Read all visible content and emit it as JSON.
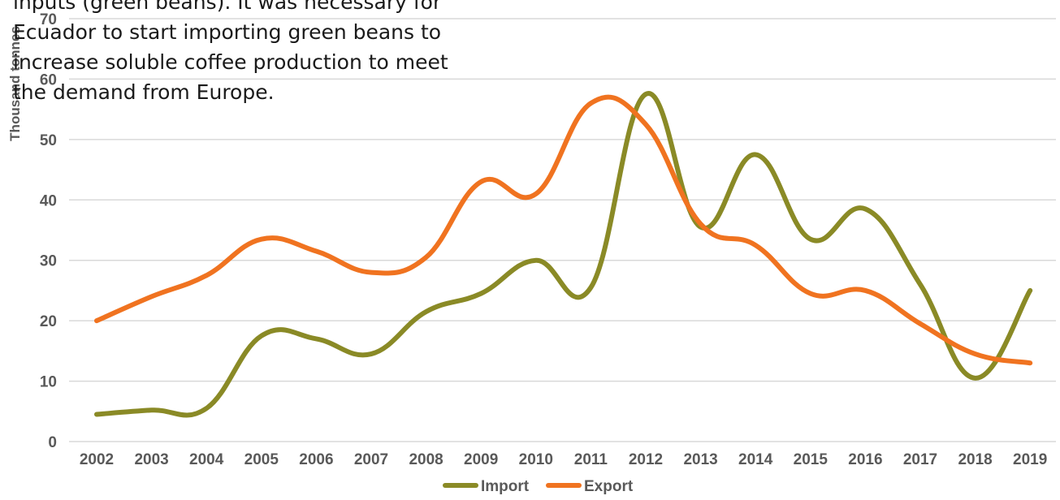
{
  "paragraph": {
    "lines": [
      "inputs (green beans). It was necessary for",
      "Ecuador to start importing green beans to",
      "increase soluble coffee production to meet",
      "the demand from Europe."
    ]
  },
  "chart_data": {
    "type": "line",
    "ylabel": "Thousand tonnes",
    "ylim": [
      0,
      70
    ],
    "yticks": [
      0,
      10,
      20,
      30,
      40,
      50,
      60,
      70
    ],
    "categories": [
      "2002",
      "2003",
      "2004",
      "2005",
      "2006",
      "2007",
      "2008",
      "2009",
      "2010",
      "2011",
      "2012",
      "2013",
      "2014",
      "2015",
      "2016",
      "2017",
      "2018",
      "2019"
    ],
    "grid": true,
    "legend_position": "bottom",
    "series": [
      {
        "name": "Import",
        "color": "#8a8a26",
        "values": [
          4.5,
          5.2,
          5.5,
          17.5,
          17.0,
          14.5,
          21.5,
          24.5,
          30.0,
          25.5,
          57.5,
          35.5,
          47.5,
          33.5,
          38.5,
          26.0,
          10.5,
          25.0
        ]
      },
      {
        "name": "Export",
        "color": "#f07320",
        "values": [
          20.0,
          24.0,
          27.5,
          33.5,
          31.5,
          28.0,
          30.5,
          43.0,
          41.0,
          56.0,
          52.5,
          36.0,
          32.5,
          24.5,
          25.0,
          19.5,
          14.5,
          13.0
        ]
      }
    ]
  }
}
